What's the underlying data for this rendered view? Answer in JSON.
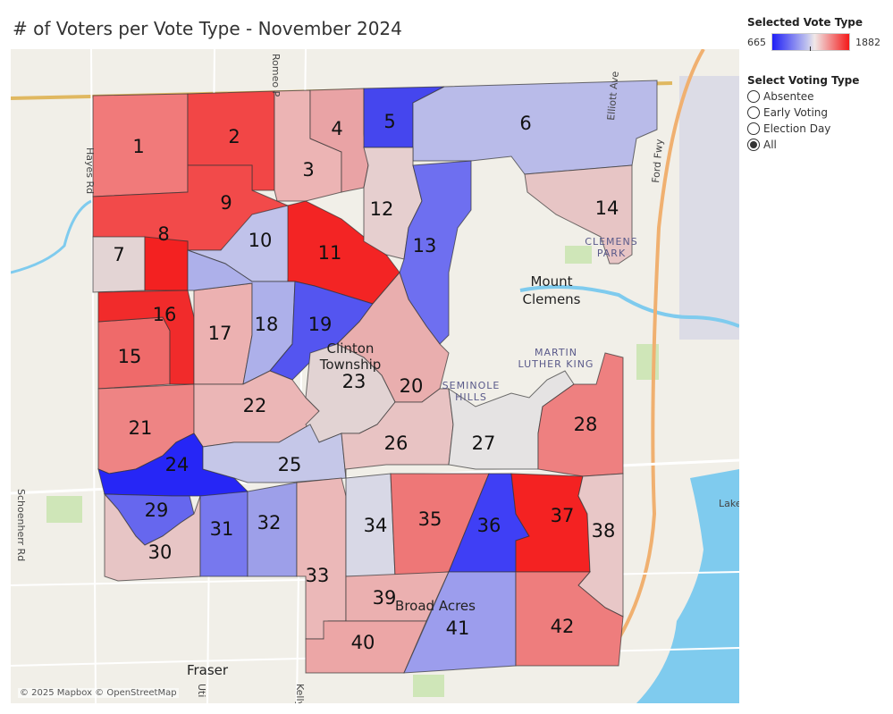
{
  "title": "# of Voters per Vote Type - November 2024",
  "legend": {
    "title": "Selected Vote Type",
    "min": "665",
    "max": "1882",
    "color_low": "#1f1ff6",
    "color_high": "#f41919"
  },
  "filter": {
    "title": "Select Voting Type",
    "options": [
      "Absentee",
      "Early Voting",
      "Election Day",
      "All"
    ],
    "selected": "All"
  },
  "attribution": "© 2025 Mapbox © OpenStreetMap",
  "places": {
    "mount": "Mount",
    "clemens": "Clemens",
    "clinton": "Clinton",
    "township": "Township",
    "martin": "MARTIN",
    "luther_king": "LUTHER KING",
    "seminole": "SEMINOLE",
    "hills": "HILLS",
    "clemens_park_1": "CLEMENS",
    "clemens_park_2": "PARK",
    "broad_acres": "Broad Acres",
    "fraser": "Fraser",
    "lake": "Lake",
    "romeo": "Romeo P",
    "ford_fwy": "Ford Fwy",
    "schoenherr": "Schoenherr Rd",
    "hayes": "Hayes Rd",
    "kelly": "Kelly",
    "utica": "Uti",
    "elliott": "Elliott Ave"
  },
  "precincts": [
    {
      "id": "1",
      "color": "#f17a7a"
    },
    {
      "id": "2",
      "color": "#f24646"
    },
    {
      "id": "3",
      "color": "#ecb4b4"
    },
    {
      "id": "4",
      "color": "#e9a3a5"
    },
    {
      "id": "5",
      "color": "#4546ee"
    },
    {
      "id": "6",
      "color": "#b9bbe9"
    },
    {
      "id": "7",
      "color": "#e3d4d4"
    },
    {
      "id": "8",
      "color": "#f32121"
    },
    {
      "id": "9",
      "color": "#f24a4a"
    },
    {
      "id": "10",
      "color": "#c0c2ea"
    },
    {
      "id": "11",
      "color": "#f32424"
    },
    {
      "id": "12",
      "color": "#e6cfcf"
    },
    {
      "id": "13",
      "color": "#6e6ff0"
    },
    {
      "id": "14",
      "color": "#e7c5c5"
    },
    {
      "id": "15",
      "color": "#ef6a6a"
    },
    {
      "id": "16",
      "color": "#f12b2b"
    },
    {
      "id": "17",
      "color": "#ecb1b1"
    },
    {
      "id": "18",
      "color": "#adb0ea"
    },
    {
      "id": "19",
      "color": "#5455f0"
    },
    {
      "id": "20",
      "color": "#e9aeae"
    },
    {
      "id": "21",
      "color": "#ee8484"
    },
    {
      "id": "22",
      "color": "#ebb6b6"
    },
    {
      "id": "23",
      "color": "#e2d3d3"
    },
    {
      "id": "24",
      "color": "#2626f6"
    },
    {
      "id": "25",
      "color": "#c5c7e8"
    },
    {
      "id": "26",
      "color": "#e8c3c3"
    },
    {
      "id": "27",
      "color": "#e5e3e3"
    },
    {
      "id": "28",
      "color": "#ee8080"
    },
    {
      "id": "29",
      "color": "#6667ee"
    },
    {
      "id": "30",
      "color": "#e7c5c5"
    },
    {
      "id": "31",
      "color": "#7778ee"
    },
    {
      "id": "32",
      "color": "#9d9fe9"
    },
    {
      "id": "33",
      "color": "#ebb8b8"
    },
    {
      "id": "34",
      "color": "#d8d8e6"
    },
    {
      "id": "35",
      "color": "#ee7777"
    },
    {
      "id": "36",
      "color": "#3f3ff5"
    },
    {
      "id": "37",
      "color": "#f42222"
    },
    {
      "id": "38",
      "color": "#e8c7c7"
    },
    {
      "id": "39",
      "color": "#ebb0b0"
    },
    {
      "id": "40",
      "color": "#eca6a6"
    },
    {
      "id": "41",
      "color": "#9c9ded"
    },
    {
      "id": "42",
      "color": "#ee7d7d"
    }
  ]
}
